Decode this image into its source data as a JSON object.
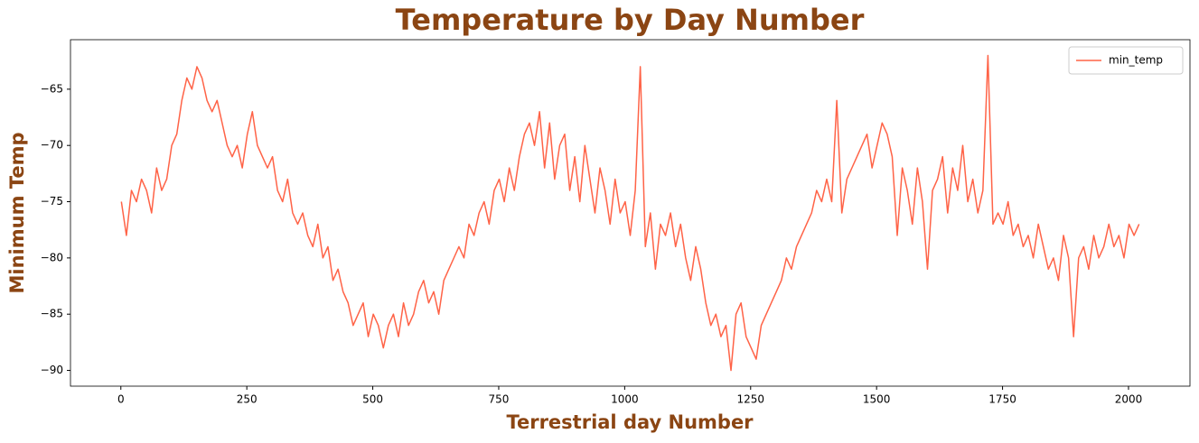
{
  "chart_data": {
    "type": "line",
    "title": "Temperature by Day Number",
    "x_label": "Terrestrial day Number",
    "y_label": "Minimum Temp",
    "x": [
      1,
      11,
      21,
      31,
      41,
      51,
      61,
      71,
      81,
      91,
      101,
      111,
      121,
      131,
      141,
      151,
      161,
      171,
      181,
      191,
      201,
      211,
      221,
      231,
      241,
      251,
      261,
      271,
      281,
      291,
      301,
      311,
      321,
      331,
      341,
      351,
      361,
      371,
      381,
      391,
      401,
      411,
      421,
      431,
      441,
      451,
      461,
      471,
      481,
      491,
      501,
      511,
      521,
      531,
      541,
      551,
      561,
      571,
      581,
      591,
      601,
      611,
      621,
      631,
      641,
      651,
      661,
      671,
      681,
      691,
      701,
      711,
      721,
      731,
      741,
      751,
      761,
      771,
      781,
      791,
      801,
      811,
      821,
      831,
      841,
      851,
      861,
      871,
      881,
      891,
      901,
      911,
      921,
      931,
      941,
      951,
      961,
      971,
      981,
      991,
      1001,
      1011,
      1021,
      1031,
      1041,
      1051,
      1061,
      1071,
      1081,
      1091,
      1101,
      1111,
      1121,
      1131,
      1141,
      1151,
      1161,
      1171,
      1181,
      1191,
      1201,
      1211,
      1221,
      1231,
      1241,
      1251,
      1261,
      1271,
      1281,
      1291,
      1301,
      1311,
      1321,
      1331,
      1341,
      1351,
      1361,
      1371,
      1381,
      1391,
      1401,
      1411,
      1421,
      1431,
      1441,
      1451,
      1461,
      1471,
      1481,
      1491,
      1501,
      1511,
      1521,
      1531,
      1541,
      1551,
      1561,
      1571,
      1581,
      1591,
      1601,
      1611,
      1621,
      1631,
      1641,
      1651,
      1661,
      1671,
      1681,
      1691,
      1701,
      1711,
      1721,
      1731,
      1741,
      1751,
      1761,
      1771,
      1781,
      1791,
      1801,
      1811,
      1821,
      1831,
      1841,
      1851,
      1861,
      1871,
      1881,
      1891,
      1901,
      1911,
      1921,
      1931,
      1941,
      1951,
      1961,
      1971,
      1981,
      1991,
      2001,
      2011,
      2021
    ],
    "series": [
      {
        "name": "min_temp",
        "color": "#ff6347",
        "values": [
          -75,
          -78,
          -74,
          -75,
          -73,
          -74,
          -76,
          -72,
          -74,
          -73,
          -70,
          -69,
          -66,
          -64,
          -65,
          -63,
          -64,
          -66,
          -67,
          -66,
          -68,
          -70,
          -71,
          -70,
          -72,
          -69,
          -67,
          -70,
          -71,
          -72,
          -71,
          -74,
          -75,
          -73,
          -76,
          -77,
          -76,
          -78,
          -79,
          -77,
          -80,
          -79,
          -82,
          -81,
          -83,
          -84,
          -86,
          -85,
          -84,
          -87,
          -85,
          -86,
          -88,
          -86,
          -85,
          -87,
          -84,
          -86,
          -85,
          -83,
          -82,
          -84,
          -83,
          -85,
          -82,
          -81,
          -80,
          -79,
          -80,
          -77,
          -78,
          -76,
          -75,
          -77,
          -74,
          -73,
          -75,
          -72,
          -74,
          -71,
          -69,
          -68,
          -70,
          -67,
          -72,
          -68,
          -73,
          -70,
          -69,
          -74,
          -71,
          -75,
          -70,
          -73,
          -76,
          -72,
          -74,
          -77,
          -73,
          -76,
          -75,
          -78,
          -74,
          -63,
          -79,
          -76,
          -81,
          -77,
          -78,
          -76,
          -79,
          -77,
          -80,
          -82,
          -79,
          -81,
          -84,
          -86,
          -85,
          -87,
          -86,
          -90,
          -85,
          -84,
          -87,
          -88,
          -89,
          -86,
          -85,
          -84,
          -83,
          -82,
          -80,
          -81,
          -79,
          -78,
          -77,
          -76,
          -74,
          -75,
          -73,
          -75,
          -66,
          -76,
          -73,
          -72,
          -71,
          -70,
          -69,
          -72,
          -70,
          -68,
          -69,
          -71,
          -78,
          -72,
          -74,
          -77,
          -72,
          -75,
          -81,
          -74,
          -73,
          -71,
          -76,
          -72,
          -74,
          -70,
          -75,
          -73,
          -76,
          -74,
          -62,
          -77,
          -76,
          -77,
          -75,
          -78,
          -77,
          -79,
          -78,
          -80,
          -77,
          -79,
          -81,
          -80,
          -82,
          -78,
          -80,
          -87,
          -80,
          -79,
          -81,
          -78,
          -80,
          -79,
          -77,
          -79,
          -78,
          -80,
          -77,
          -78,
          -77
        ]
      }
    ],
    "xlim": [
      -100,
      2122
    ],
    "ylim": [
      -91.4,
      -60.6
    ],
    "xticks": [
      0,
      250,
      500,
      750,
      1000,
      1250,
      1500,
      1750,
      2000
    ],
    "yticks": [
      {
        "value": -90,
        "label": "−90"
      },
      {
        "value": -85,
        "label": "−85"
      },
      {
        "value": -80,
        "label": "−80"
      },
      {
        "value": -75,
        "label": "−75"
      },
      {
        "value": -70,
        "label": "−70"
      },
      {
        "value": -65,
        "label": "−65"
      }
    ],
    "legend": "upper right",
    "grid": false
  }
}
